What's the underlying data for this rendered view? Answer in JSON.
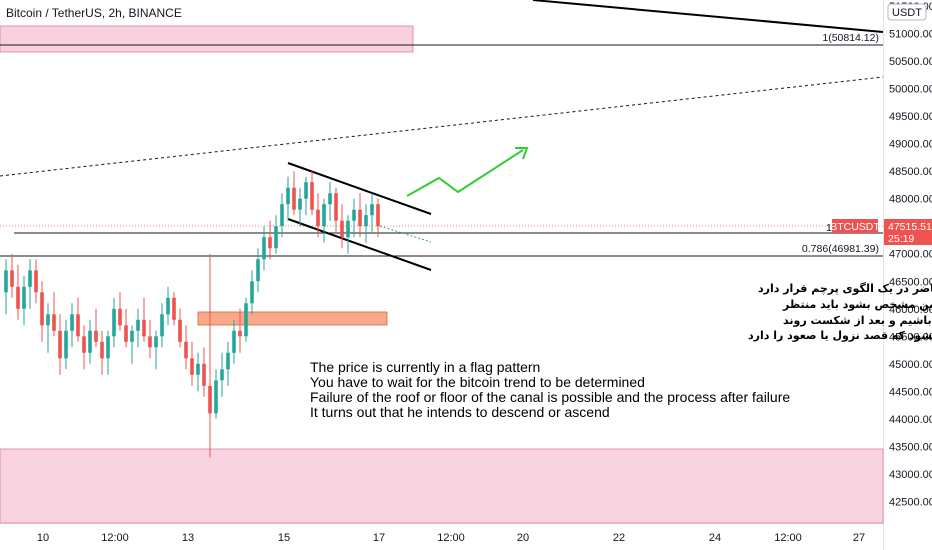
{
  "header": {
    "title": "Bitcoin / TetherUS, 2h, BINANCE",
    "currency_badge": "USDT"
  },
  "price_badge": {
    "symbol": "BTCUSDT",
    "price": "47515.51",
    "countdown": "25:19",
    "flag": "1"
  },
  "levels": {
    "fib_1_label": "1(50814.12)",
    "fib_0786_label": "0.786(46981.39)"
  },
  "annotations": {
    "persian_lines": [
      "قیمت در حال حاضر در یک الگوی پرچم قرار دارد",
      "که برای اینکه روند بیتکوین مشخص بشود باید منتظر",
      "شکست سقف یا کف کانال باشیم و بعد از شکست روند",
      "مشخص میشود که قصد نزول یا صعود را دارد"
    ],
    "english_lines": [
      "The price is currently in a flag pattern",
      "You have to wait for the bitcoin trend to be determined",
      "Failure of the roof or floor of the canal is possible and the process after failure",
      "It turns out that he intends to descend or ascend"
    ]
  },
  "colors": {
    "up": "#26a69a",
    "down": "#ef5350",
    "pink_zone": "#f8c8d8",
    "orange_zone": "#f7a98b",
    "green_arrow": "#33cc33",
    "price_badge_bg": "#ef5350"
  },
  "chart_data": {
    "type": "candlestick",
    "title": "Bitcoin / TetherUS, 2h, BINANCE",
    "ylim": [
      42000,
      51500
    ],
    "y_ticks": [
      42500,
      43000,
      43500,
      44000,
      44500,
      45000,
      45500,
      46000,
      46500,
      47000,
      47500,
      48000,
      48500,
      49000,
      49500,
      50000,
      50500,
      51000,
      51500
    ],
    "y_tick_labels": [
      "42500.00",
      "43000.00",
      "43500.00",
      "44000.00",
      "44500.00",
      "45000.00",
      "45500.00",
      "46000.00",
      "46500.00",
      "47000.00",
      "47500.00",
      "48000.00",
      "48500.00",
      "49000.00",
      "49500.00",
      "50000.00",
      "50500.00",
      "51000.00",
      "51500.00"
    ],
    "x_tick_labels": [
      "10",
      "12:00",
      "13",
      "15",
      "17",
      "12:00",
      "20",
      "22",
      "24",
      "12:00",
      "27"
    ],
    "price_levels": [
      {
        "name": "fib 1",
        "value": 50814.12
      },
      {
        "name": "fib 0.786",
        "value": 46981.39
      },
      {
        "name": "current",
        "value": 47515.51
      }
    ],
    "candles": [
      {
        "o": 46300,
        "h": 46900,
        "l": 45900,
        "c": 46700
      },
      {
        "o": 46700,
        "h": 47000,
        "l": 46200,
        "c": 46400
      },
      {
        "o": 46400,
        "h": 46800,
        "l": 45800,
        "c": 46000
      },
      {
        "o": 46000,
        "h": 46600,
        "l": 45700,
        "c": 46400
      },
      {
        "o": 46400,
        "h": 46900,
        "l": 46000,
        "c": 46700
      },
      {
        "o": 46700,
        "h": 46900,
        "l": 46100,
        "c": 46300
      },
      {
        "o": 46300,
        "h": 46500,
        "l": 45400,
        "c": 45700
      },
      {
        "o": 45700,
        "h": 46100,
        "l": 45200,
        "c": 45900
      },
      {
        "o": 45900,
        "h": 46300,
        "l": 45500,
        "c": 45600
      },
      {
        "o": 45600,
        "h": 45900,
        "l": 44800,
        "c": 45100
      },
      {
        "o": 45100,
        "h": 45800,
        "l": 44900,
        "c": 45600
      },
      {
        "o": 45600,
        "h": 46100,
        "l": 45300,
        "c": 45900
      },
      {
        "o": 45900,
        "h": 46200,
        "l": 45400,
        "c": 45500
      },
      {
        "o": 45500,
        "h": 45700,
        "l": 44900,
        "c": 45200
      },
      {
        "o": 45200,
        "h": 45800,
        "l": 45000,
        "c": 45600
      },
      {
        "o": 45600,
        "h": 46000,
        "l": 45300,
        "c": 45400
      },
      {
        "o": 45400,
        "h": 45600,
        "l": 44800,
        "c": 45100
      },
      {
        "o": 45100,
        "h": 45600,
        "l": 44800,
        "c": 45500
      },
      {
        "o": 45500,
        "h": 46200,
        "l": 45300,
        "c": 46000
      },
      {
        "o": 46000,
        "h": 46300,
        "l": 45600,
        "c": 45700
      },
      {
        "o": 45700,
        "h": 46000,
        "l": 45300,
        "c": 45400
      },
      {
        "o": 45400,
        "h": 45700,
        "l": 45000,
        "c": 45600
      },
      {
        "o": 45600,
        "h": 46000,
        "l": 45300,
        "c": 45800
      },
      {
        "o": 45800,
        "h": 46200,
        "l": 45400,
        "c": 45500
      },
      {
        "o": 45500,
        "h": 45800,
        "l": 45100,
        "c": 45300
      },
      {
        "o": 45300,
        "h": 45600,
        "l": 44900,
        "c": 45500
      },
      {
        "o": 45500,
        "h": 46100,
        "l": 45300,
        "c": 45900
      },
      {
        "o": 45900,
        "h": 46400,
        "l": 45700,
        "c": 46200
      },
      {
        "o": 46200,
        "h": 46300,
        "l": 45700,
        "c": 45800
      },
      {
        "o": 45800,
        "h": 46000,
        "l": 45300,
        "c": 45400
      },
      {
        "o": 45400,
        "h": 45700,
        "l": 44900,
        "c": 45100
      },
      {
        "o": 45100,
        "h": 45400,
        "l": 44600,
        "c": 44800
      },
      {
        "o": 44800,
        "h": 45200,
        "l": 44500,
        "c": 45000
      },
      {
        "o": 45000,
        "h": 45300,
        "l": 44400,
        "c": 44600
      },
      {
        "o": 44600,
        "h": 47000,
        "l": 43300,
        "c": 44100
      },
      {
        "o": 44100,
        "h": 44900,
        "l": 44000,
        "c": 44700
      },
      {
        "o": 44700,
        "h": 45200,
        "l": 44400,
        "c": 44900
      },
      {
        "o": 44900,
        "h": 45400,
        "l": 44600,
        "c": 45200
      },
      {
        "o": 45200,
        "h": 45800,
        "l": 45000,
        "c": 45600
      },
      {
        "o": 45600,
        "h": 46000,
        "l": 45200,
        "c": 45500
      },
      {
        "o": 45500,
        "h": 46200,
        "l": 45400,
        "c": 46100
      },
      {
        "o": 46100,
        "h": 46700,
        "l": 45900,
        "c": 46500
      },
      {
        "o": 46500,
        "h": 47100,
        "l": 46300,
        "c": 46900
      },
      {
        "o": 46900,
        "h": 47500,
        "l": 46700,
        "c": 47300
      },
      {
        "o": 47300,
        "h": 47600,
        "l": 46900,
        "c": 47100
      },
      {
        "o": 47100,
        "h": 47700,
        "l": 47000,
        "c": 47500
      },
      {
        "o": 47500,
        "h": 48100,
        "l": 47300,
        "c": 47900
      },
      {
        "o": 47900,
        "h": 48400,
        "l": 47600,
        "c": 48200
      },
      {
        "o": 48200,
        "h": 48500,
        "l": 47700,
        "c": 47800
      },
      {
        "o": 47800,
        "h": 48200,
        "l": 47500,
        "c": 48000
      },
      {
        "o": 48000,
        "h": 48400,
        "l": 47700,
        "c": 48300
      },
      {
        "o": 48300,
        "h": 48500,
        "l": 47700,
        "c": 47800
      },
      {
        "o": 47800,
        "h": 48100,
        "l": 47300,
        "c": 47500
      },
      {
        "o": 47500,
        "h": 48000,
        "l": 47200,
        "c": 47900
      },
      {
        "o": 47900,
        "h": 48300,
        "l": 47600,
        "c": 48100
      },
      {
        "o": 48100,
        "h": 48200,
        "l": 47400,
        "c": 47600
      },
      {
        "o": 47600,
        "h": 47900,
        "l": 47100,
        "c": 47300
      },
      {
        "o": 47300,
        "h": 47700,
        "l": 47000,
        "c": 47600
      },
      {
        "o": 47600,
        "h": 48000,
        "l": 47300,
        "c": 47800
      },
      {
        "o": 47800,
        "h": 48100,
        "l": 47300,
        "c": 47500
      },
      {
        "o": 47500,
        "h": 47900,
        "l": 47200,
        "c": 47700
      },
      {
        "o": 47700,
        "h": 48100,
        "l": 47400,
        "c": 47900
      },
      {
        "o": 47900,
        "h": 48000,
        "l": 47300,
        "c": 47500
      }
    ]
  }
}
